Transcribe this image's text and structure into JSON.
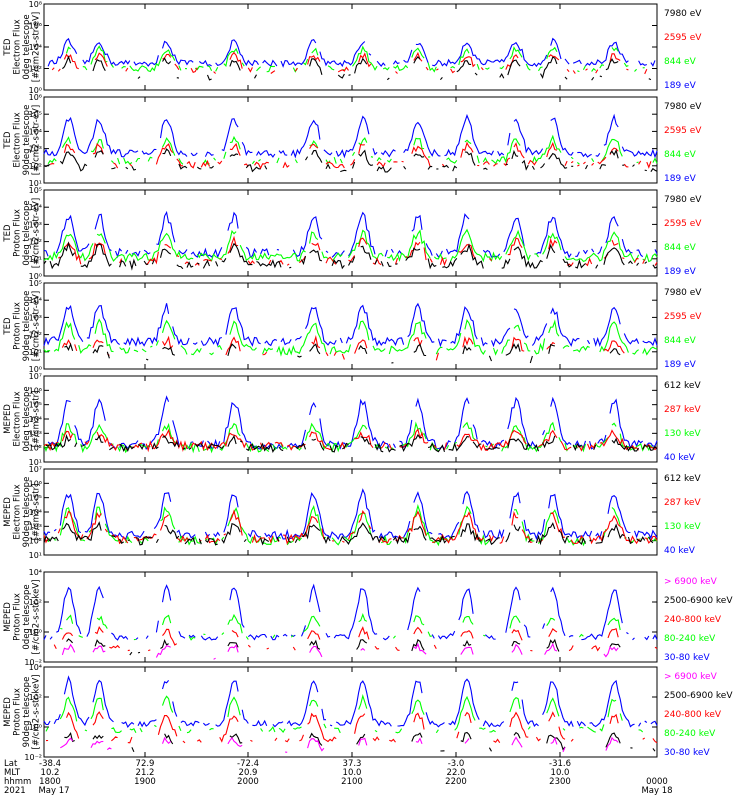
{
  "colors": {
    "black": "#000000",
    "red": "#ff0000",
    "green": "#00ff00",
    "blue": "#0000ff",
    "magenta": "#ff00ff"
  },
  "x_axis": {
    "row_labels": [
      "Lat",
      "MLT",
      "hhmm",
      "2021"
    ],
    "ticks": [
      {
        "lat": "-38.4",
        "mlt": "10.2",
        "hhmm": "1800",
        "date": "May 17"
      },
      {
        "lat": "72.9",
        "mlt": "21.2",
        "hhmm": "1900",
        "date": ""
      },
      {
        "lat": "-72.4",
        "mlt": "20.9",
        "hhmm": "2000",
        "date": ""
      },
      {
        "lat": "37.3",
        "mlt": "10.0",
        "hhmm": "2100",
        "date": ""
      },
      {
        "lat": "-3.0",
        "mlt": "22.0",
        "hhmm": "2200",
        "date": ""
      },
      {
        "lat": "-31.6",
        "mlt": "10.0",
        "hhmm": "2300",
        "date": ""
      },
      {
        "lat": "",
        "mlt": "",
        "hhmm": "0000",
        "date": "May 18"
      }
    ]
  },
  "chart_data": [
    {
      "type": "line",
      "ylabel": [
        "TED",
        "Electron Flux",
        "0deg telescope",
        "[#/cm2-s-str-eV]"
      ],
      "ylim": [
        1.0,
        100000000.0
      ],
      "log": true,
      "ytick_labels": [
        "10⁰",
        "10²",
        "10⁴",
        "10⁶",
        "10⁸"
      ],
      "series": [
        {
          "name": "7980 eV",
          "color": "#000000",
          "base": 1.2,
          "spike": 2.8,
          "density": 0.35
        },
        {
          "name": "2595 eV",
          "color": "#ff0000",
          "base": 1.8,
          "spike": 3.2,
          "density": 0.45
        },
        {
          "name": "844 eV",
          "color": "#00ff00",
          "base": 2.0,
          "spike": 3.8,
          "density": 0.6
        },
        {
          "name": "189 eV",
          "color": "#0000ff",
          "base": 2.5,
          "spike": 4.5,
          "density": 0.9
        }
      ]
    },
    {
      "type": "line",
      "ylabel": [
        "TED",
        "Electron Flux",
        "90deg telescope",
        "[#/cm2-s-str-eV]"
      ],
      "ylim": [
        1.0,
        10000000.0
      ],
      "log": true,
      "ytick_labels": [
        "10¹",
        "10²",
        "10³",
        "10⁴",
        "10⁵",
        "10⁶"
      ],
      "series": [
        {
          "name": "7980 eV",
          "color": "#000000",
          "base": 1.2,
          "spike": 2.5,
          "density": 0.6
        },
        {
          "name": "2595 eV",
          "color": "#ff0000",
          "base": 1.5,
          "spike": 3.0,
          "density": 0.6
        },
        {
          "name": "844 eV",
          "color": "#00ff00",
          "base": 1.8,
          "spike": 3.5,
          "density": 0.6
        },
        {
          "name": "189 eV",
          "color": "#0000ff",
          "base": 2.4,
          "spike": 5.2,
          "density": 0.9
        }
      ]
    },
    {
      "type": "line",
      "ylabel": [
        "TED",
        "Proton Flux",
        "0deg telescope",
        "[#/cm2-s-str-eV]"
      ],
      "ylim": [
        1.0,
        1000000.0
      ],
      "log": true,
      "ytick_labels": [
        "10⁰",
        "10¹",
        "10²",
        "10³",
        "10⁴",
        "10⁵"
      ],
      "series": [
        {
          "name": "7980 eV",
          "color": "#000000",
          "base": 0.8,
          "spike": 2.0,
          "density": 0.7
        },
        {
          "name": "2595 eV",
          "color": "#ff0000",
          "base": 1.0,
          "spike": 2.4,
          "density": 0.6
        },
        {
          "name": "844 eV",
          "color": "#00ff00",
          "base": 1.3,
          "spike": 3.0,
          "density": 0.95
        },
        {
          "name": "189 eV",
          "color": "#0000ff",
          "base": 1.6,
          "spike": 4.2,
          "density": 0.8
        }
      ]
    },
    {
      "type": "line",
      "ylabel": [
        "TED",
        "Proton Flux",
        "90deg telescope",
        "[#/cm2-s-str-eV]"
      ],
      "ylim": [
        1.0,
        1000000.0
      ],
      "log": true,
      "ytick_labels": [
        "10⁰",
        "10¹",
        "10²",
        "10³",
        "10⁴",
        "10⁵"
      ],
      "series": [
        {
          "name": "7980 eV",
          "color": "#000000",
          "base": 0.7,
          "spike": 1.5,
          "density": 0.15
        },
        {
          "name": "2595 eV",
          "color": "#ff0000",
          "base": 0.9,
          "spike": 2.0,
          "density": 0.2
        },
        {
          "name": "844 eV",
          "color": "#00ff00",
          "base": 1.3,
          "spike": 3.2,
          "density": 0.85
        },
        {
          "name": "189 eV",
          "color": "#0000ff",
          "base": 1.9,
          "spike": 4.3,
          "density": 0.9
        }
      ]
    },
    {
      "type": "line",
      "ylabel": [
        "MEPED",
        "Electron Flux",
        "0deg telescope",
        "[#/cm2-s-str]"
      ],
      "ylim": [
        10.0,
        10000000.0
      ],
      "log": true,
      "ytick_labels": [
        "10¹",
        "10²",
        "10³",
        "10⁴",
        "10⁵",
        "10⁶",
        "10⁷"
      ],
      "series": [
        {
          "name": "612 keV",
          "color": "#000000",
          "base": 2.0,
          "spike": 2.6,
          "density": 0.8
        },
        {
          "name": "287 keV",
          "color": "#ff0000",
          "base": 2.1,
          "spike": 3.0,
          "density": 0.8
        },
        {
          "name": "130 keV",
          "color": "#00ff00",
          "base": 2.0,
          "spike": 3.5,
          "density": 0.8
        },
        {
          "name": "40 keV",
          "color": "#0000ff",
          "base": 2.2,
          "spike": 5.3,
          "density": 0.9
        }
      ]
    },
    {
      "type": "line",
      "ylabel": [
        "MEPED",
        "Electron Flux",
        "90deg telescope",
        "[#/cm2-s-str]"
      ],
      "ylim": [
        10.0,
        10000000.0
      ],
      "log": true,
      "ytick_labels": [
        "10¹",
        "10²",
        "10³",
        "10⁴",
        "10⁵",
        "10⁶",
        "10⁷"
      ],
      "series": [
        {
          "name": "612 keV",
          "color": "#000000",
          "base": 2.0,
          "spike": 3.0,
          "density": 0.8
        },
        {
          "name": "287 keV",
          "color": "#ff0000",
          "base": 2.1,
          "spike": 3.8,
          "density": 0.8
        },
        {
          "name": "130 keV",
          "color": "#00ff00",
          "base": 2.0,
          "spike": 4.2,
          "density": 0.8
        },
        {
          "name": "40 keV",
          "color": "#0000ff",
          "base": 2.4,
          "spike": 5.3,
          "density": 0.9
        }
      ]
    },
    {
      "type": "line",
      "ylabel": [
        "MEPED",
        "Proton Flux",
        "0deg telescope",
        "[#/cm2-s-str-keV]"
      ],
      "ylim": [
        0.001,
        1000000.0
      ],
      "log": true,
      "ytick_labels": [
        "10⁻²",
        "10⁰",
        "10²",
        "10⁴"
      ],
      "series": [
        {
          "name": "> 6900 keV",
          "color": "#ff00ff",
          "base": -2.5,
          "spike": -1.5,
          "density": 0.05
        },
        {
          "name": "2500-6900 keV",
          "color": "#000000",
          "base": -2.3,
          "spike": -1.0,
          "density": 0.1
        },
        {
          "name": "240-800 keV",
          "color": "#ff0000",
          "base": -1.6,
          "spike": 0.2,
          "density": 0.35
        },
        {
          "name": "80-240 keV",
          "color": "#00ff00",
          "base": -0.5,
          "spike": 1.5,
          "density": 0.3
        },
        {
          "name": "30-80 keV",
          "color": "#0000ff",
          "base": -0.5,
          "spike": 4.4,
          "density": 0.7
        }
      ]
    },
    {
      "type": "line",
      "ylabel": [
        "MEPED",
        "Proton Flux",
        "90deg telescope",
        "[#/cm2-s-str-keV]"
      ],
      "ylim": [
        0.001,
        1000000.0
      ],
      "log": true,
      "ytick_labels": [
        "10⁻²",
        "10⁰",
        "10²",
        "10⁴"
      ],
      "series": [
        {
          "name": "> 6900 keV",
          "color": "#ff00ff",
          "base": -2.4,
          "spike": -1.3,
          "density": 0.08
        },
        {
          "name": "2500-6900 keV",
          "color": "#000000",
          "base": -2.2,
          "spike": -0.8,
          "density": 0.15
        },
        {
          "name": "240-800 keV",
          "color": "#ff0000",
          "base": -1.3,
          "spike": 1.3,
          "density": 0.45
        },
        {
          "name": "80-240 keV",
          "color": "#00ff00",
          "base": -0.3,
          "spike": 2.8,
          "density": 0.6
        },
        {
          "name": "30-80 keV",
          "color": "#0000ff",
          "base": 0.3,
          "spike": 4.7,
          "density": 0.85
        }
      ]
    }
  ]
}
